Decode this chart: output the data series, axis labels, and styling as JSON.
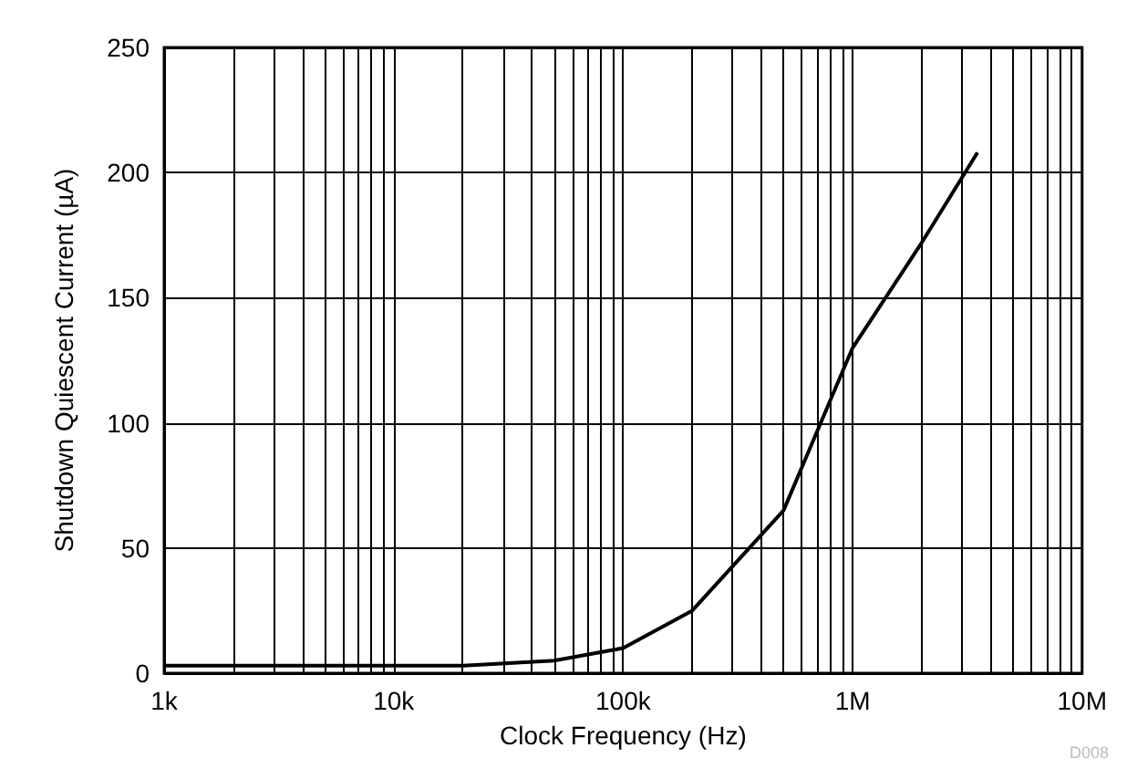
{
  "chart_data": {
    "type": "line",
    "xlabel": "Clock Frequency (Hz)",
    "ylabel": "Shutdown Quiescent Current (µA)",
    "x": [
      1000,
      20000,
      50000,
      100000,
      200000,
      500000,
      1000000,
      2000000,
      3500000
    ],
    "series": [
      {
        "color": "#000000",
        "values": [
          3,
          3,
          5,
          10,
          25,
          65,
          130,
          172,
          208
        ]
      }
    ],
    "log": "x",
    "xlim": [
      1000,
      10000000
    ],
    "xticks": [
      {
        "value": 1000,
        "label": "1k"
      },
      {
        "value": 2000,
        "label": null
      },
      {
        "value": 3000,
        "label": null
      },
      {
        "value": 4000,
        "label": null
      },
      {
        "value": 5000,
        "label": null
      },
      {
        "value": 6000,
        "label": null
      },
      {
        "value": 7000,
        "label": null
      },
      {
        "value": 8000,
        "label": null
      },
      {
        "value": 9000,
        "label": null
      },
      {
        "value": 10000,
        "label": "10k"
      },
      {
        "value": 20000,
        "label": null
      },
      {
        "value": 30000,
        "label": null
      },
      {
        "value": 40000,
        "label": null
      },
      {
        "value": 50000,
        "label": null
      },
      {
        "value": 60000,
        "label": null
      },
      {
        "value": 70000,
        "label": null
      },
      {
        "value": 80000,
        "label": null
      },
      {
        "value": 90000,
        "label": null
      },
      {
        "value": 100000,
        "label": "100k"
      },
      {
        "value": 200000,
        "label": null
      },
      {
        "value": 300000,
        "label": null
      },
      {
        "value": 400000,
        "label": null
      },
      {
        "value": 500000,
        "label": null
      },
      {
        "value": 600000,
        "label": null
      },
      {
        "value": 700000,
        "label": null
      },
      {
        "value": 800000,
        "label": null
      },
      {
        "value": 900000,
        "label": null
      },
      {
        "value": 1000000,
        "label": "1M"
      },
      {
        "value": 2000000,
        "label": null
      },
      {
        "value": 3000000,
        "label": null
      },
      {
        "value": 4000000,
        "label": null
      },
      {
        "value": 5000000,
        "label": null
      },
      {
        "value": 6000000,
        "label": null
      },
      {
        "value": 7000000,
        "label": null
      },
      {
        "value": 8000000,
        "label": null
      },
      {
        "value": 9000000,
        "label": null
      },
      {
        "value": 10000000,
        "label": "10M"
      }
    ],
    "ylim": [
      0,
      250
    ],
    "yticks": [
      0,
      50,
      100,
      150,
      200,
      250
    ],
    "grid": true,
    "marker": "none",
    "line_style": "solid",
    "annotations": [
      "D008"
    ]
  }
}
